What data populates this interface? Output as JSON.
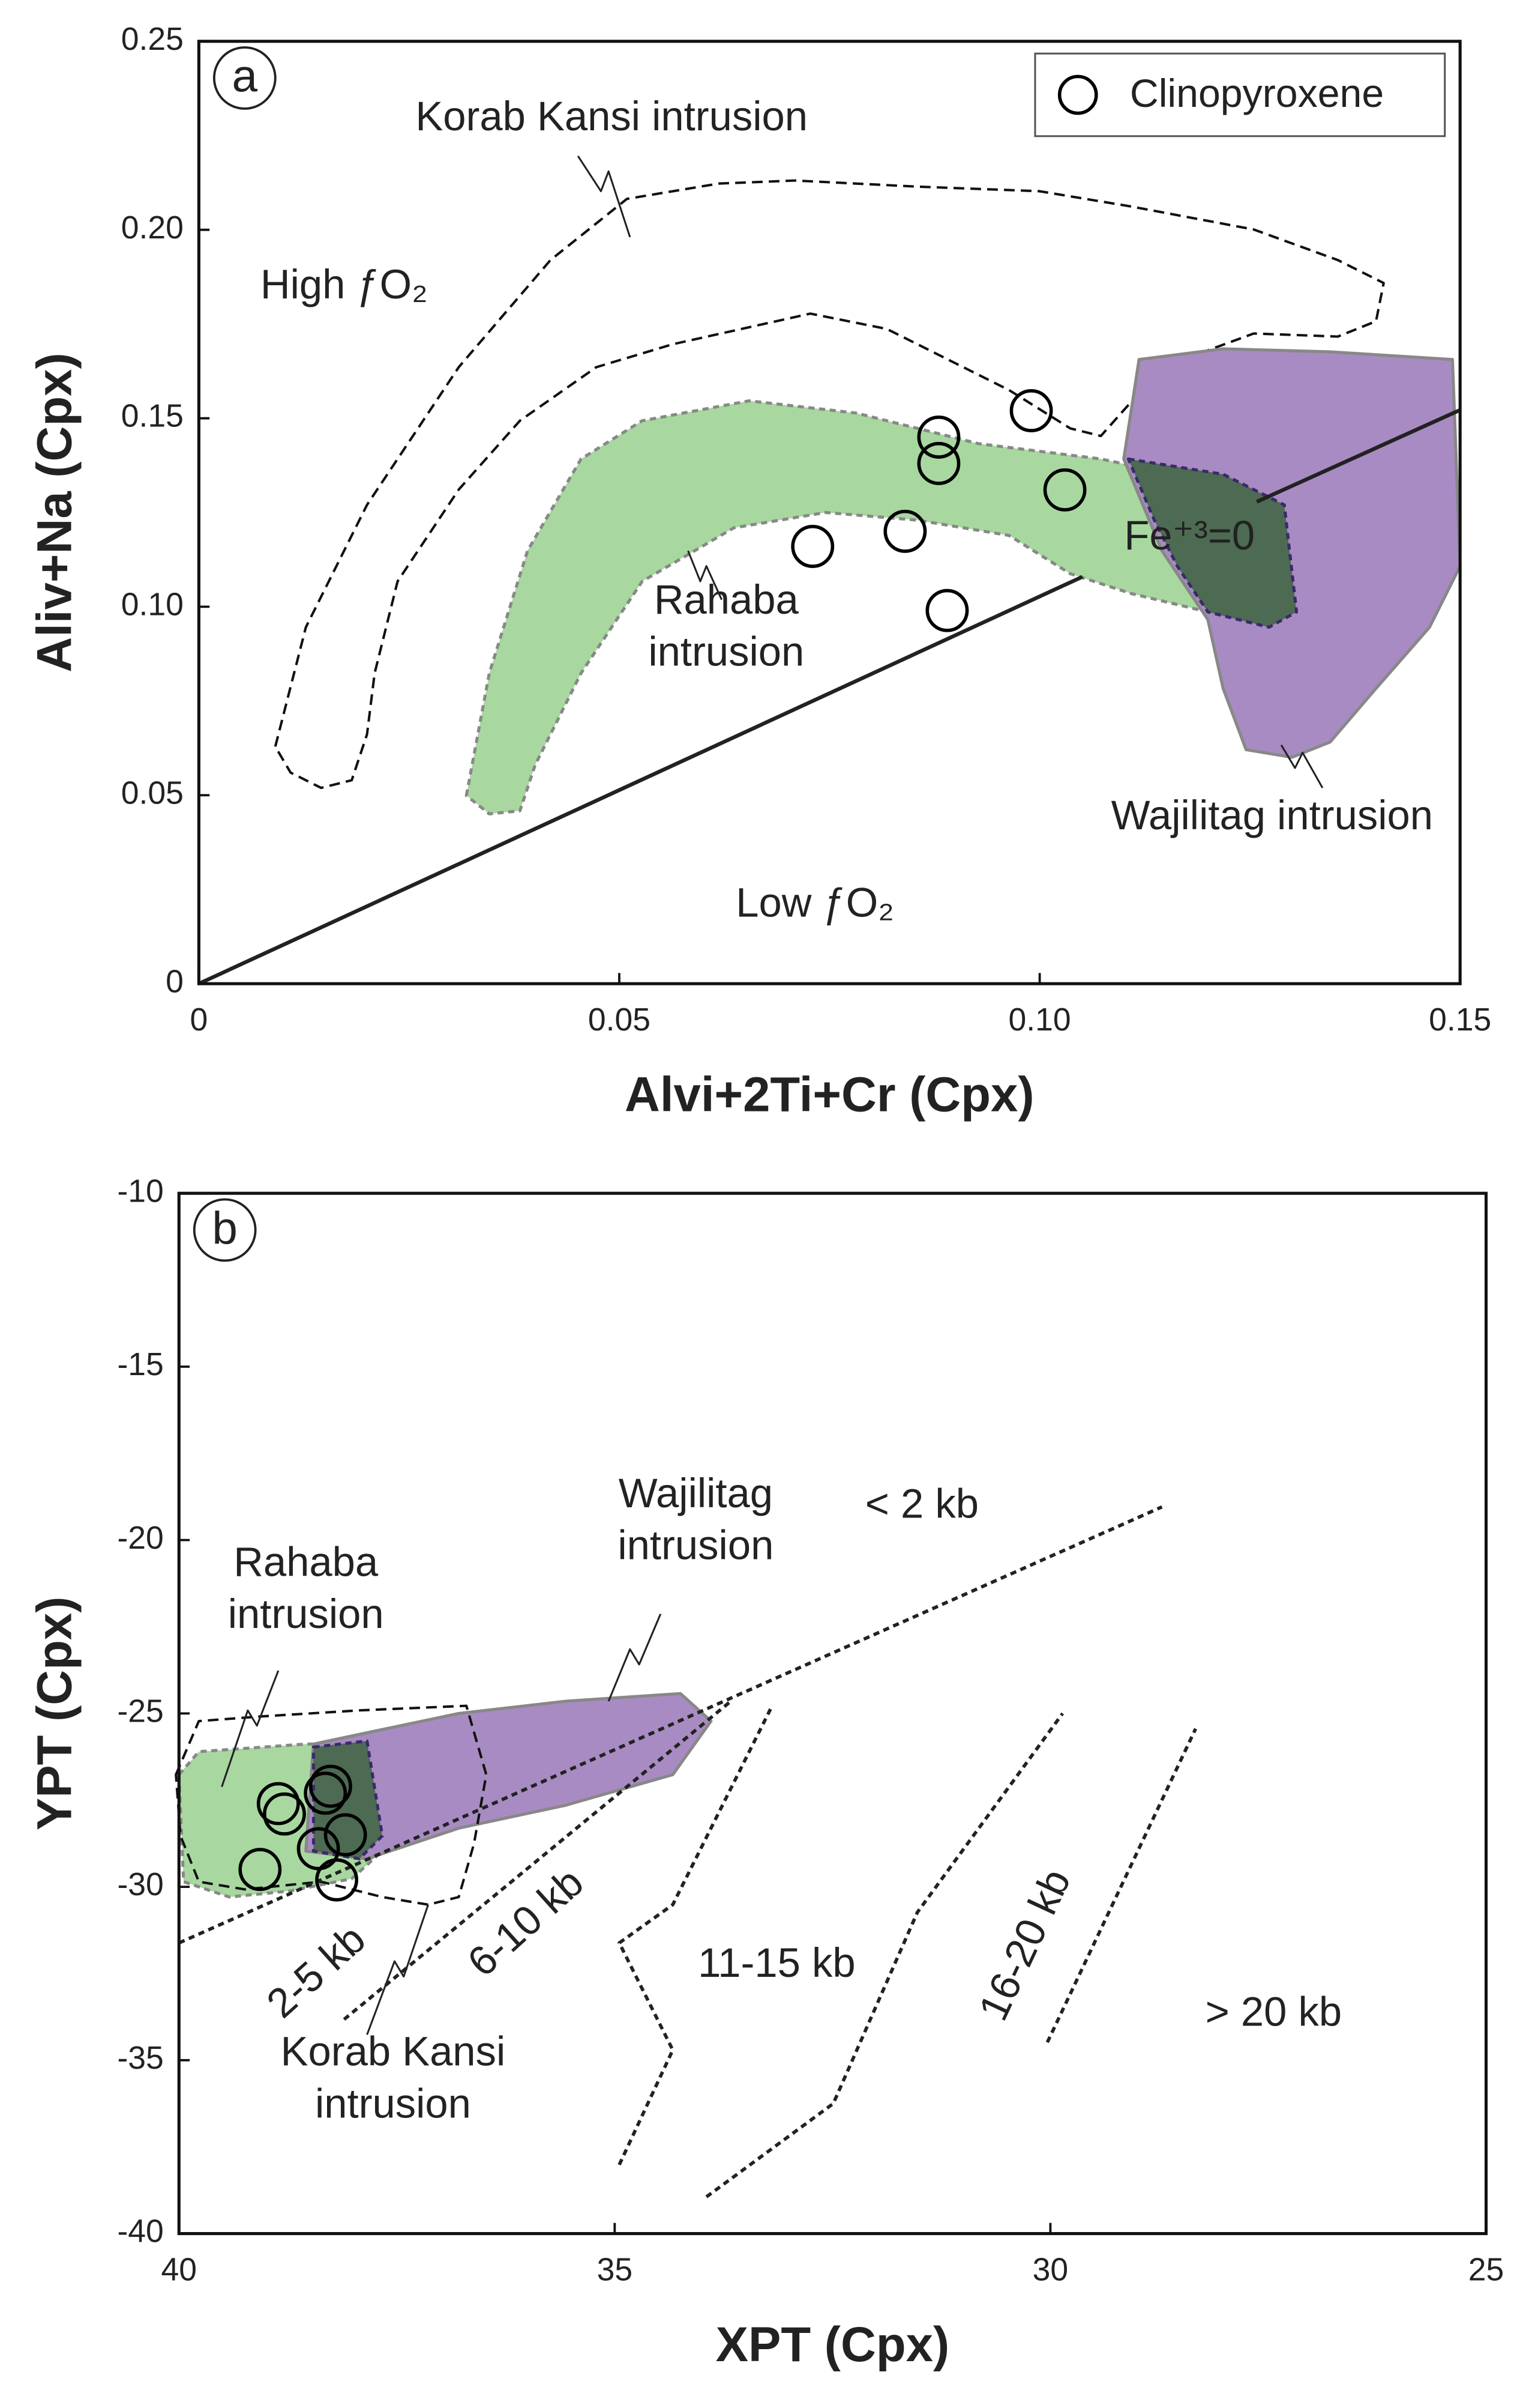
{
  "chart_data": [
    {
      "type": "scatter",
      "panel": "a",
      "x_label": "Alvi+2Ti+Cr (Cpx)",
      "y_label": "Aliv+Na (Cpx)",
      "xlim": [
        0,
        0.15
      ],
      "ylim": [
        0,
        0.25
      ],
      "xticks": [
        0,
        0.05,
        {
          "value": 0.1,
          "label": "0.10"
        },
        0.15
      ],
      "yticks": [
        0,
        0.05,
        {
          "value": 0.1,
          "label": "0.10"
        },
        0.15,
        {
          "value": 0.2,
          "label": "0.20"
        },
        0.25
      ],
      "legend": "upper right",
      "series": [
        {
          "name": "Clinopyroxene",
          "color": "#000000",
          "x": [
            0.088,
            0.099,
            0.088,
            0.103,
            0.084,
            0.073,
            0.089
          ],
          "values": [
            0.145,
            0.152,
            0.138,
            0.131,
            0.12,
            0.116,
            0.099
          ]
        }
      ],
      "annotations": [
        [
          "Korab Kansi intrusion"
        ],
        [
          "High ƒO₂"
        ],
        [
          "Rahaba",
          "intrusion"
        ],
        [
          "Fe⁺³=0"
        ],
        [
          "Wajilitag intrusion"
        ],
        [
          "Low ƒO₂"
        ]
      ]
    },
    {
      "type": "scatter",
      "panel": "b",
      "x_label": "XPT (Cpx)",
      "y_label": "YPT (Cpx)",
      "xlim": [
        40,
        25
      ],
      "ylim": [
        -40,
        -10
      ],
      "xticks": [
        40,
        35,
        30,
        25
      ],
      "yticks": [
        -10,
        -15,
        -20,
        -25,
        -30,
        -35,
        -40
      ],
      "series": [
        {
          "color": "#000000",
          "x": [
            39.07,
            38.79,
            38.86,
            38.32,
            38.26,
            38.4,
            38.09,
            38.19
          ],
          "values": [
            -29.5,
            -27.9,
            -27.6,
            -27.3,
            -27.1,
            -28.9,
            -28.5,
            -29.8
          ]
        }
      ],
      "annotations": [
        [
          "Rahaba",
          "intrusion"
        ],
        [
          "Wajilitag",
          "intrusion"
        ],
        [
          "< 2 kb"
        ],
        [
          "2-5 kb"
        ],
        [
          "6-10 kb"
        ],
        [
          "11-15 kb"
        ],
        [
          "16-20 kb"
        ],
        [
          "> 20 kb"
        ],
        [
          "Korab Kansi",
          "intrusion"
        ]
      ]
    }
  ]
}
